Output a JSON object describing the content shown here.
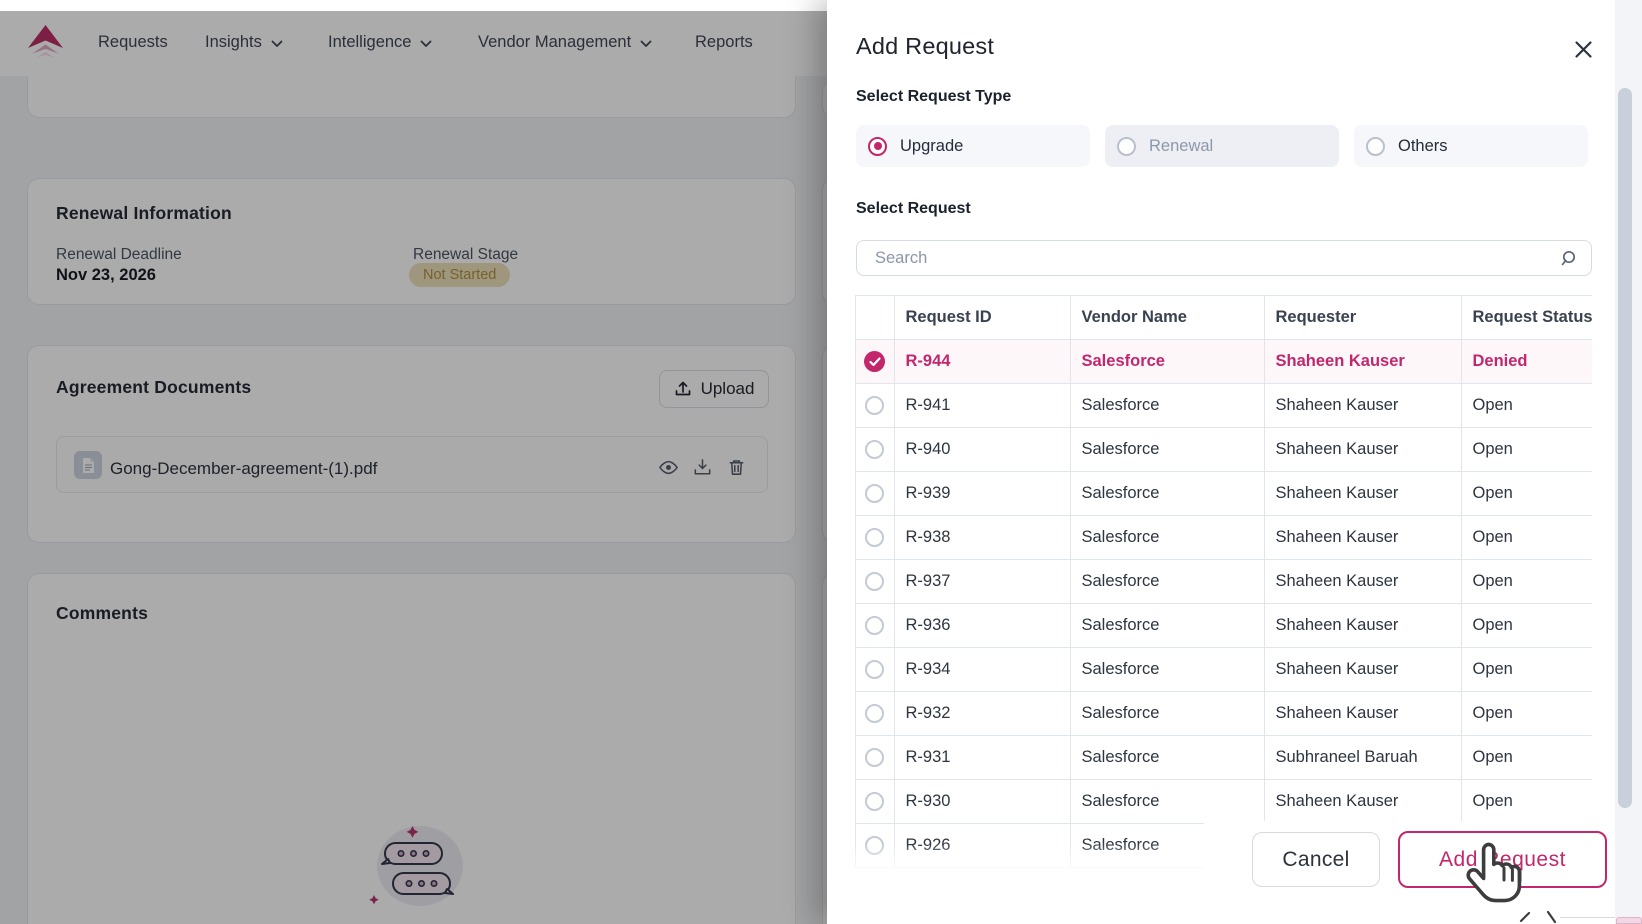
{
  "nav": {
    "items": [
      {
        "label": "Requests",
        "chevron": false
      },
      {
        "label": "Insights",
        "chevron": true
      },
      {
        "label": "Intelligence",
        "chevron": true
      },
      {
        "label": "Vendor Management",
        "chevron": true
      },
      {
        "label": "Reports",
        "chevron": false
      }
    ]
  },
  "page": {
    "renewal_card": {
      "title": "Renewal Information",
      "deadline_label": "Renewal Deadline",
      "deadline_value": "Nov 23, 2026",
      "stage_label": "Renewal Stage",
      "stage_badge": "Not Started"
    },
    "agreement_card": {
      "title": "Agreement Documents",
      "upload_label": "Upload",
      "file_name": "Gong-December-agreement-(1).pdf"
    },
    "comments_card": {
      "title": "Comments"
    }
  },
  "modal": {
    "title": "Add Request",
    "type_label": "Select Request Type",
    "types": [
      {
        "label": "Upgrade",
        "selected": true,
        "disabled": false
      },
      {
        "label": "Renewal",
        "selected": false,
        "disabled": true
      },
      {
        "label": "Others",
        "selected": false,
        "disabled": false
      }
    ],
    "select_label": "Select Request",
    "search_placeholder": "Search",
    "table": {
      "headers": [
        "Request ID",
        "Vendor Name",
        "Requester",
        "Request Status"
      ],
      "rows": [
        {
          "id": "R-944",
          "vendor": "Salesforce",
          "requester": "Shaheen Kauser",
          "status": "Denied",
          "selected": true
        },
        {
          "id": "R-941",
          "vendor": "Salesforce",
          "requester": "Shaheen Kauser",
          "status": "Open",
          "selected": false
        },
        {
          "id": "R-940",
          "vendor": "Salesforce",
          "requester": "Shaheen Kauser",
          "status": "Open",
          "selected": false
        },
        {
          "id": "R-939",
          "vendor": "Salesforce",
          "requester": "Shaheen Kauser",
          "status": "Open",
          "selected": false
        },
        {
          "id": "R-938",
          "vendor": "Salesforce",
          "requester": "Shaheen Kauser",
          "status": "Open",
          "selected": false
        },
        {
          "id": "R-937",
          "vendor": "Salesforce",
          "requester": "Shaheen Kauser",
          "status": "Open",
          "selected": false
        },
        {
          "id": "R-936",
          "vendor": "Salesforce",
          "requester": "Shaheen Kauser",
          "status": "Open",
          "selected": false
        },
        {
          "id": "R-934",
          "vendor": "Salesforce",
          "requester": "Shaheen Kauser",
          "status": "Open",
          "selected": false
        },
        {
          "id": "R-932",
          "vendor": "Salesforce",
          "requester": "Shaheen Kauser",
          "status": "Open",
          "selected": false
        },
        {
          "id": "R-931",
          "vendor": "Salesforce",
          "requester": "Subhraneel Baruah",
          "status": "Open",
          "selected": false
        },
        {
          "id": "R-930",
          "vendor": "Salesforce",
          "requester": "Shaheen Kauser",
          "status": "Open",
          "selected": false
        },
        {
          "id": "R-926",
          "vendor": "Salesforce",
          "requester": "",
          "status": "",
          "selected": false
        }
      ]
    },
    "cancel_label": "Cancel",
    "submit_label": "Add Request",
    "colors": {
      "accent": "#c2276d"
    }
  }
}
